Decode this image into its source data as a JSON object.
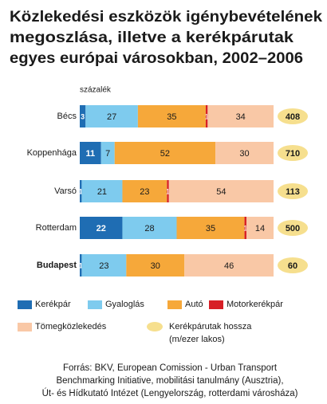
{
  "chart_data": {
    "type": "bar",
    "orientation": "horizontal",
    "stacked": true,
    "title": [
      "Közlekedési eszközök igénybevételének",
      "megoszlása, illetve a kerékpárutak",
      "egyes európai városokban, 2002–2006"
    ],
    "axis_label": "százalék",
    "xlim": [
      0,
      100
    ],
    "categories": [
      "Bécs",
      "Koppenhága",
      "Varsó",
      "Rotterdam",
      "Budapest"
    ],
    "series": [
      {
        "name": "Kerékpár",
        "color": "#1f6db3",
        "values": [
          3,
          11,
          1,
          22,
          1
        ]
      },
      {
        "name": "Gyaloglás",
        "color": "#7ecbee",
        "values": [
          27,
          7,
          21,
          28,
          23
        ]
      },
      {
        "name": "Autó",
        "color": "#f6a83a",
        "values": [
          35,
          52,
          23,
          35,
          30
        ]
      },
      {
        "name": "Motorkerékpár",
        "color": "#d71f26",
        "values": [
          1,
          null,
          1,
          1,
          null
        ]
      },
      {
        "name": "Tömegközlekedés",
        "color": "#f9c8a6",
        "values": [
          34,
          30,
          54,
          14,
          46
        ]
      }
    ],
    "lengths": {
      "name": "Kerékpárutak hossza",
      "unit": "(m/ezer lakos)",
      "color": "#f6df8e",
      "values": [
        408,
        710,
        113,
        500,
        60
      ]
    },
    "source": [
      "Forrás: BKV, European Comission - Urban Transport",
      "Benchmarking Initiative, mobilitási tanulmány (Ausztria),",
      "Út- és Hídkutató Intézet (Lengyelország, rotterdami városháza)"
    ]
  }
}
